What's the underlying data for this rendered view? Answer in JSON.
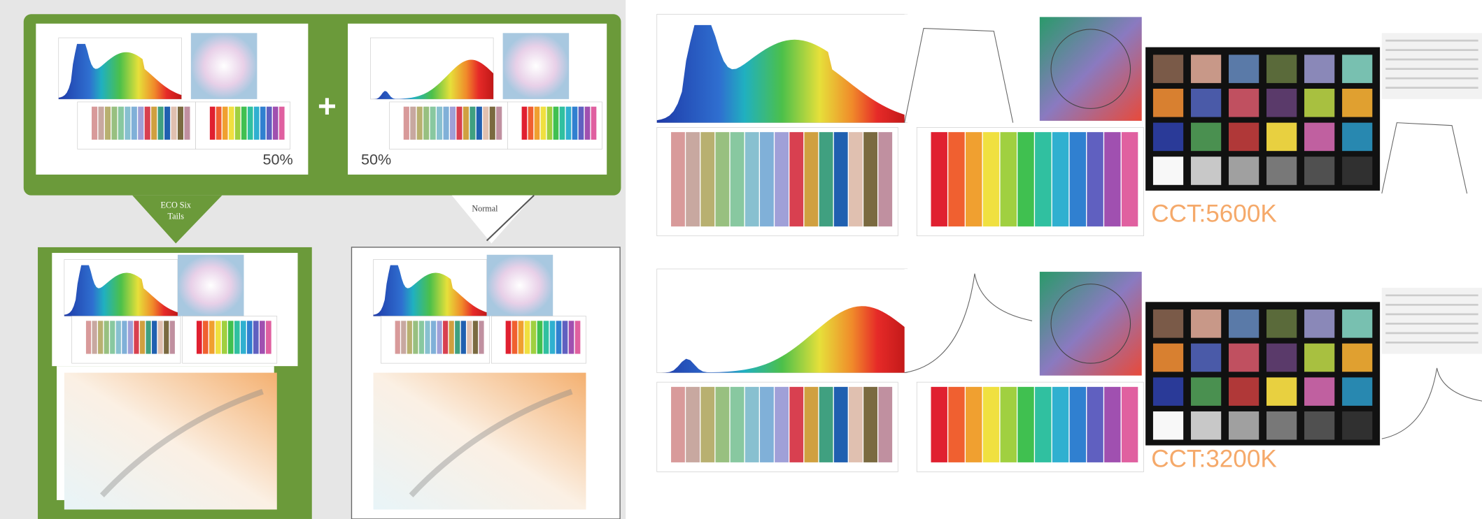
{
  "left_panel": {
    "top_left_percent": "50%",
    "top_right_percent": "50%",
    "plus": "+",
    "eco_label": [
      "ECO Six",
      "Tails"
    ],
    "normal_label": "Normal"
  },
  "right_panel": {
    "cct_top": "CCT:5600K",
    "cct_bottom": "CCT:3200K"
  }
}
